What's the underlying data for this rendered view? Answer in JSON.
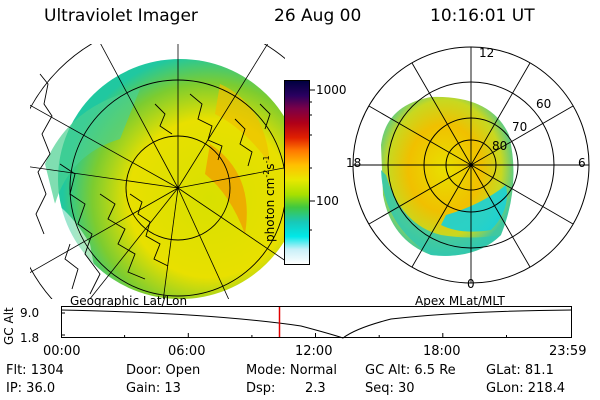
{
  "header": {
    "instrument": "Ultraviolet Imager",
    "date": "26 Aug 00",
    "time": "10:16:01 UT"
  },
  "geo_panel": {
    "label": "Geographic Lat/Lon"
  },
  "apex_panel": {
    "label": "Apex MLat/MLT",
    "mlt_labels": {
      "top": "12",
      "left": "18",
      "right": "6",
      "bottom": "0"
    },
    "lat_labels": [
      "60",
      "70",
      "80"
    ]
  },
  "colorbar": {
    "unit_main": "photon cm",
    "unit_sup1": "-2",
    "unit_mid": "s",
    "unit_sup2": "-1",
    "ticks": [
      "1000",
      "100"
    ],
    "colors": [
      "#000040",
      "#2a0060",
      "#7a0048",
      "#b00018",
      "#e02000",
      "#ff7800",
      "#ffc000",
      "#e8e800",
      "#a8e000",
      "#40c840",
      "#18c8b8",
      "#00e8e8",
      "#c8f0f8",
      "#ffffff"
    ]
  },
  "altitude_plot": {
    "ylabel": "GC Alt",
    "yticks": [
      "9.0",
      "1.8"
    ],
    "xticks": [
      "00:00",
      "06:00",
      "12:00",
      "18:00",
      "23:59"
    ],
    "current_time_marker_color": "#e00000"
  },
  "status": {
    "flt": "Flt: 1304",
    "ip": "IP: 36.0",
    "door": "Door: Open",
    "gain": "Gain: 13",
    "mode": "Mode: Normal",
    "dsp_label": "Dsp:",
    "dsp_value": "2.3",
    "gcalt": "GC Alt: 6.5 Re",
    "seq": "Seq: 30",
    "glat": "GLat: 81.1",
    "glon": "GLon: 218.4"
  }
}
